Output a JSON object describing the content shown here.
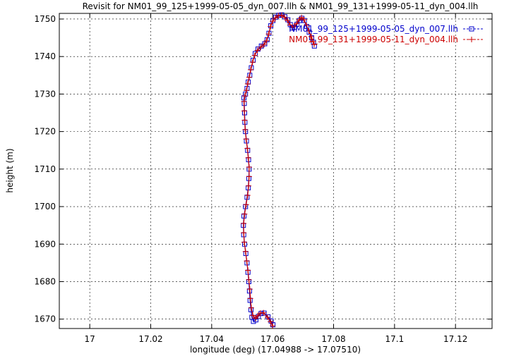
{
  "chart_data": {
    "type": "scatter",
    "title": "Revisit for NM01_99_125+1999-05-05_dyn_007.llh & NM01_99_131+1999-05-11_dyn_004.llh",
    "xlabel": "longitude (deg) (17.04988 -> 17.07510)",
    "ylabel": "height (m)",
    "xlim": [
      16.99,
      17.132
    ],
    "ylim": [
      1667.5,
      1751.5
    ],
    "x_ticks": [
      17,
      17.02,
      17.04,
      17.06,
      17.08,
      17.1,
      17.12
    ],
    "x_tick_labels": [
      "17",
      "17.02",
      "17.04",
      "17.06",
      "17.08",
      "17.1",
      "17.12"
    ],
    "y_ticks": [
      1670,
      1680,
      1690,
      1700,
      1710,
      1720,
      1730,
      1740,
      1750
    ],
    "y_tick_labels": [
      "1670",
      "1680",
      "1690",
      "1700",
      "1710",
      "1720",
      "1730",
      "1740",
      "1750"
    ],
    "grid": true,
    "legend_position": "top-right",
    "series": [
      {
        "name": "NM01_99_125+1999-05-05_dyn_007.llh",
        "color": "#0000cc",
        "marker": "square",
        "points": [
          [
            17.0601,
            1668.5
          ],
          [
            17.0595,
            1669.5
          ],
          [
            17.0585,
            1670.6
          ],
          [
            17.0572,
            1671.6
          ],
          [
            17.0562,
            1671.5
          ],
          [
            17.0553,
            1670.7
          ],
          [
            17.0545,
            1669.8
          ],
          [
            17.0537,
            1669.4
          ],
          [
            17.0532,
            1670.5
          ],
          [
            17.0529,
            1672.5
          ],
          [
            17.0526,
            1675.0
          ],
          [
            17.0524,
            1677.5
          ],
          [
            17.0522,
            1680.0
          ],
          [
            17.0519,
            1682.5
          ],
          [
            17.0516,
            1685.0
          ],
          [
            17.0512,
            1687.5
          ],
          [
            17.0508,
            1690.0
          ],
          [
            17.0505,
            1692.5
          ],
          [
            17.0504,
            1695.0
          ],
          [
            17.0506,
            1697.5
          ],
          [
            17.0511,
            1700.0
          ],
          [
            17.0516,
            1702.5
          ],
          [
            17.052,
            1705.0
          ],
          [
            17.0522,
            1707.5
          ],
          [
            17.0523,
            1710.0
          ],
          [
            17.0521,
            1712.5
          ],
          [
            17.0518,
            1715.0
          ],
          [
            17.0514,
            1717.5
          ],
          [
            17.0511,
            1720.0
          ],
          [
            17.0509,
            1722.5
          ],
          [
            17.0508,
            1725.0
          ],
          [
            17.0507,
            1727.5
          ],
          [
            17.0506,
            1729.0
          ],
          [
            17.0511,
            1730.0
          ],
          [
            17.0516,
            1731.5
          ],
          [
            17.052,
            1733.2
          ],
          [
            17.0525,
            1735.0
          ],
          [
            17.053,
            1737.0
          ],
          [
            17.0536,
            1739.0
          ],
          [
            17.0543,
            1740.8
          ],
          [
            17.0552,
            1742.0
          ],
          [
            17.0563,
            1742.8
          ],
          [
            17.0574,
            1743.4
          ],
          [
            17.0582,
            1744.5
          ],
          [
            17.0588,
            1746.2
          ],
          [
            17.0594,
            1748.2
          ],
          [
            17.0601,
            1749.6
          ],
          [
            17.061,
            1750.5
          ],
          [
            17.062,
            1751.0
          ],
          [
            17.063,
            1751.1
          ],
          [
            17.064,
            1750.6
          ],
          [
            17.065,
            1749.8
          ],
          [
            17.0658,
            1748.5
          ],
          [
            17.0665,
            1747.6
          ],
          [
            17.0672,
            1747.8
          ],
          [
            17.068,
            1748.6
          ],
          [
            17.0688,
            1749.6
          ],
          [
            17.0696,
            1750.2
          ],
          [
            17.0704,
            1749.6
          ],
          [
            17.0712,
            1748.0
          ],
          [
            17.072,
            1746.5
          ],
          [
            17.0728,
            1745.0
          ],
          [
            17.0734,
            1743.8
          ],
          [
            17.0737,
            1742.8
          ]
        ]
      },
      {
        "name": "NM01_99_131+1999-05-11_dyn_004.llh",
        "color": "#cc0000",
        "marker": "plus",
        "points": [
          [
            17.06,
            1668.2
          ],
          [
            17.0593,
            1669.3
          ],
          [
            17.0583,
            1670.5
          ],
          [
            17.057,
            1671.7
          ],
          [
            17.056,
            1671.6
          ],
          [
            17.0551,
            1670.9
          ],
          [
            17.0544,
            1670.2
          ],
          [
            17.0535,
            1671.0
          ],
          [
            17.053,
            1673.0
          ],
          [
            17.0527,
            1675.5
          ],
          [
            17.0525,
            1678.0
          ],
          [
            17.0522,
            1680.5
          ],
          [
            17.0519,
            1683.0
          ],
          [
            17.0515,
            1685.5
          ],
          [
            17.0511,
            1688.0
          ],
          [
            17.0507,
            1690.5
          ],
          [
            17.0505,
            1693.0
          ],
          [
            17.0505,
            1695.5
          ],
          [
            17.0508,
            1698.0
          ],
          [
            17.0513,
            1700.5
          ],
          [
            17.0518,
            1703.0
          ],
          [
            17.0521,
            1705.5
          ],
          [
            17.0523,
            1708.0
          ],
          [
            17.0523,
            1710.5
          ],
          [
            17.052,
            1713.0
          ],
          [
            17.0517,
            1715.5
          ],
          [
            17.0513,
            1718.0
          ],
          [
            17.051,
            1720.5
          ],
          [
            17.0508,
            1723.0
          ],
          [
            17.0507,
            1725.5
          ],
          [
            17.0506,
            1728.0
          ],
          [
            17.0509,
            1729.5
          ],
          [
            17.0514,
            1731.0
          ],
          [
            17.0518,
            1732.7
          ],
          [
            17.0523,
            1734.5
          ],
          [
            17.0528,
            1736.5
          ],
          [
            17.0534,
            1738.5
          ],
          [
            17.0541,
            1740.3
          ],
          [
            17.055,
            1741.6
          ],
          [
            17.0561,
            1742.5
          ],
          [
            17.0572,
            1743.2
          ],
          [
            17.058,
            1744.2
          ],
          [
            17.0587,
            1746.0
          ],
          [
            17.0593,
            1748.0
          ],
          [
            17.06,
            1749.4
          ],
          [
            17.0609,
            1750.3
          ],
          [
            17.0619,
            1750.9
          ],
          [
            17.0629,
            1751.0
          ],
          [
            17.0639,
            1750.5
          ],
          [
            17.0649,
            1749.6
          ],
          [
            17.0657,
            1748.4
          ],
          [
            17.0664,
            1747.8
          ],
          [
            17.0671,
            1748.0
          ],
          [
            17.0679,
            1748.8
          ],
          [
            17.0687,
            1749.8
          ],
          [
            17.0695,
            1750.4
          ],
          [
            17.0703,
            1749.8
          ],
          [
            17.0711,
            1748.3
          ],
          [
            17.0719,
            1746.8
          ],
          [
            17.0727,
            1745.3
          ],
          [
            17.0733,
            1744.0
          ],
          [
            17.0736,
            1743.2
          ]
        ]
      }
    ]
  }
}
